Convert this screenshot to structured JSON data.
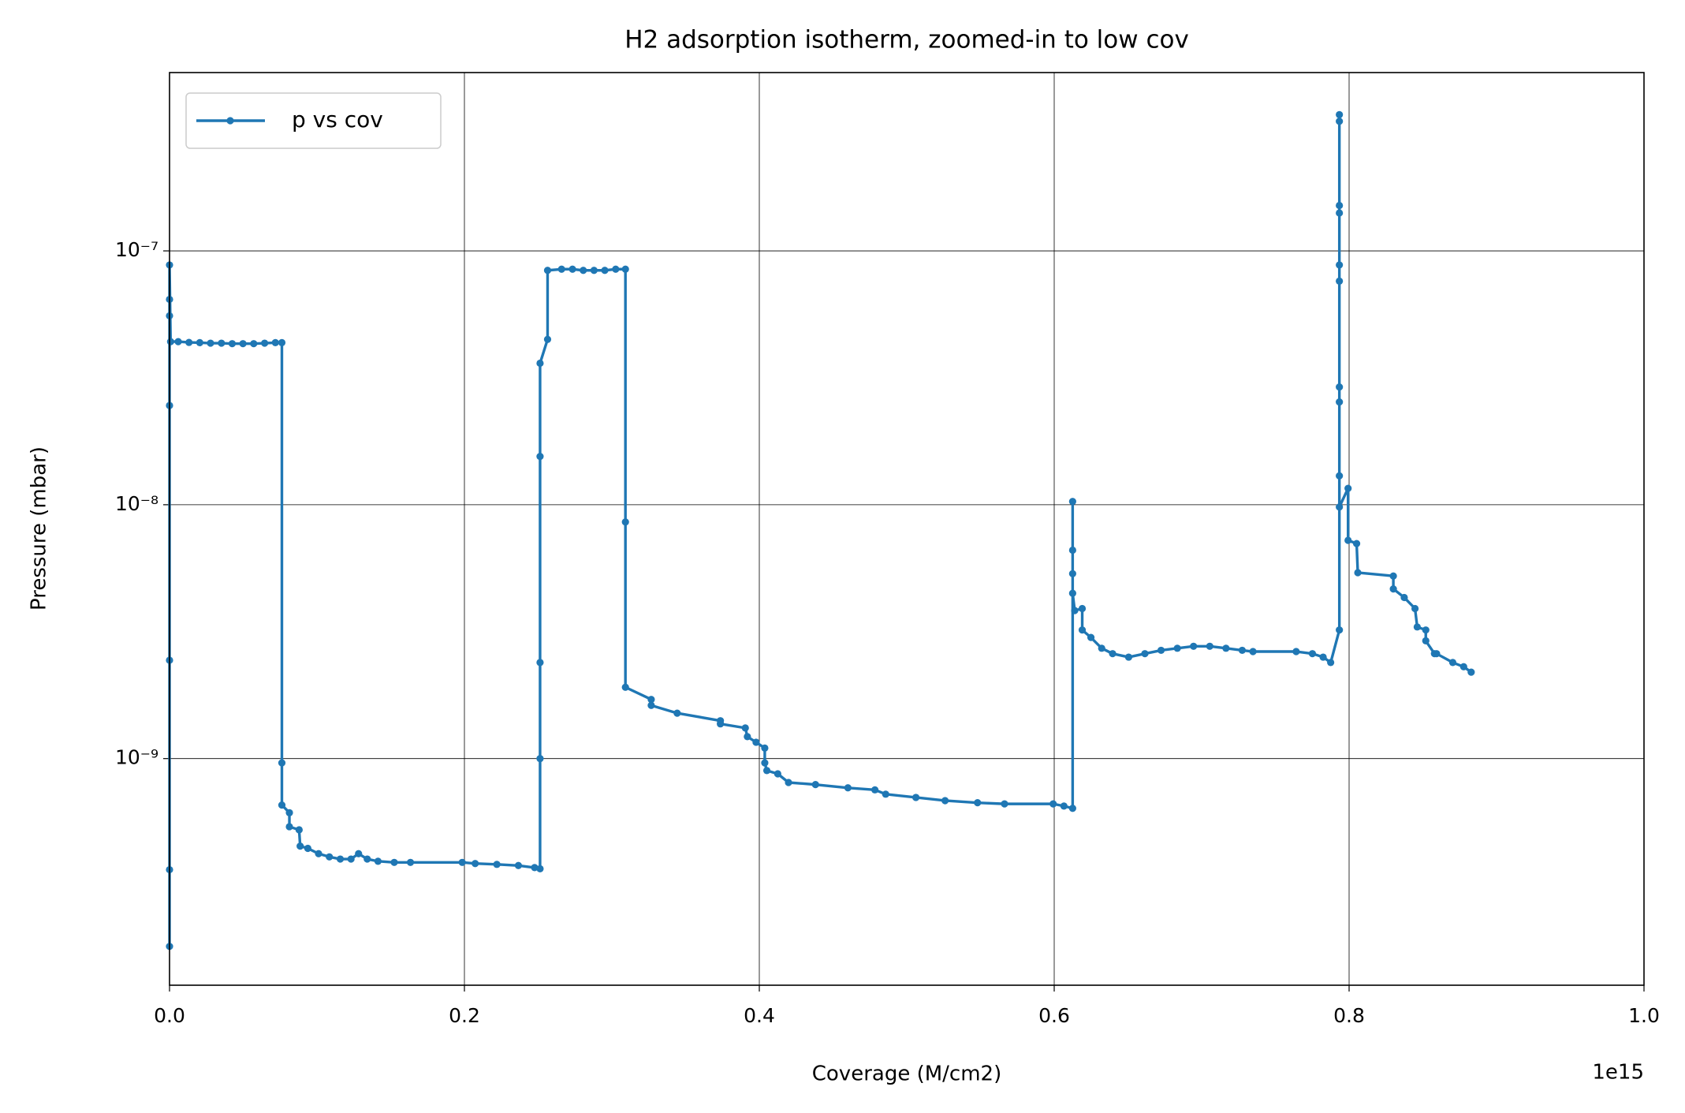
{
  "chart_data": {
    "type": "line",
    "title": "H2 adsorption isotherm, zoomed-in to low cov",
    "x_label": "Coverage (M/cm2)",
    "y_label": "Pressure (mbar)",
    "x_offset_label": "1e15",
    "y_scale": "log",
    "grid": true,
    "legend_position": "upper left",
    "xlim": [
      0,
      1000000000000000.0
    ],
    "xticks": [
      {
        "value": 0,
        "label": "0.0"
      },
      {
        "value": 200000000000000.0,
        "label": "0.2"
      },
      {
        "value": 400000000000000.0,
        "label": "0.4"
      },
      {
        "value": 600000000000000.0,
        "label": "0.6"
      },
      {
        "value": 800000000000000.0,
        "label": "0.8"
      },
      {
        "value": 1000000000000000.0,
        "label": "1.0"
      }
    ],
    "ylim": [
      1.28e-10,
      5.04e-07
    ],
    "yticks": [
      {
        "value": 1e-09,
        "label": "10⁻⁹"
      },
      {
        "value": 1e-08,
        "label": "10⁻⁸"
      },
      {
        "value": 1e-07,
        "label": "10⁻⁷"
      }
    ],
    "series": [
      {
        "name": "p vs cov",
        "color": "#1f77b4",
        "x": [
          0,
          0,
          0,
          0,
          0,
          0,
          0,
          730000000000.0,
          5900000000000.0,
          13200000000000.0,
          20500000000000.0,
          27800000000000.0,
          35200000000000.0,
          42500000000000.0,
          49800000000000.0,
          57100000000000.0,
          64500000000000.0,
          71800000000000.0,
          76200000000000.0,
          76200000000000.0,
          76200000000000.0,
          81300000000000.0,
          81300000000000.0,
          87900000000000.0,
          88600000000000.0,
          93800000000000.0,
          101100000000000.0,
          108400000000000.0,
          115800000000000.0,
          123100000000000.0,
          128200000000000.0,
          134100000000000.0,
          141400000000000.0,
          152400000000000.0,
          163400000000000.0,
          198500000000000.0,
          207300000000000.0,
          222000000000000.0,
          236600000000000.0,
          247600000000000.0,
          251300000000000.0,
          251300000000000.0,
          251300000000000.0,
          251300000000000.0,
          251300000000000.0,
          256400000000000.0,
          256400000000000.0,
          265900000000000.0,
          273300000000000.0,
          280600000000000.0,
          287900000000000.0,
          295200000000000.0,
          302600000000000.0,
          309200000000000.0,
          309200000000000.0,
          309200000000000.0,
          326700000000000.0,
          326700000000000.0,
          344300000000000.0,
          373600000000000.0,
          373600000000000.0,
          390500000000000.0,
          391900000000000.0,
          397800000000000.0,
          403700000000000.0,
          403700000000000.0,
          405100000000000.0,
          412500000000000.0,
          419800000000000.0,
          438100000000000.0,
          460100000000000.0,
          478400000000000.0,
          485700000000000.0,
          506200000000000.0,
          526000000000000.0,
          548000000000000.0,
          566300000000000.0,
          599300000000000.0,
          606600000000000.0,
          612500000000000.0,
          612500000000000.0,
          612500000000000.0,
          612500000000000.0,
          612500000000000.0,
          613900000000000.0,
          619000000000000.0,
          619000000000000.0,
          624900000000000.0,
          632200000000000.0,
          639600000000000.0,
          650500000000000.0,
          661500000000000.0,
          672500000000000.0,
          683500000000000.0,
          694500000000000.0,
          705500000000000.0,
          716500000000000.0,
          727500000000000.0,
          734800000000000.0,
          764100000000000.0,
          775100000000000.0,
          782400000000000.0,
          787500000000000.0,
          793400000000000.0,
          793400000000000.0,
          793400000000000.0,
          793400000000000.0,
          793400000000000.0,
          793400000000000.0,
          793400000000000.0,
          793400000000000.0,
          793400000000000.0,
          793400000000000.0,
          793400000000000.0,
          799300000000000.0,
          799300000000000.0,
          805100000000000.0,
          805900000000000.0,
          830000000000000.0,
          830000000000000.0,
          837400000000000.0,
          844700000000000.0,
          846200000000000.0,
          852000000000000.0,
          852000000000000.0,
          857900000000000.0,
          859300000000000.0,
          870300000000000.0,
          877700000000000.0,
          882800000000000.0
        ],
        "values": [
          1.82e-10,
          3.65e-10,
          2.44e-09,
          2.46e-08,
          5.55e-08,
          6.44e-08,
          8.8e-08,
          4.39e-08,
          4.39e-08,
          4.36e-08,
          4.35e-08,
          4.33e-08,
          4.33e-08,
          4.31e-08,
          4.31e-08,
          4.31e-08,
          4.33e-08,
          4.35e-08,
          4.35e-08,
          9.62e-10,
          6.56e-10,
          6.12e-10,
          5.39e-10,
          5.24e-10,
          4.52e-10,
          4.43e-10,
          4.22e-10,
          4.1e-10,
          4.02e-10,
          4.02e-10,
          4.22e-10,
          4.02e-10,
          3.94e-10,
          3.9e-10,
          3.9e-10,
          3.9e-10,
          3.86e-10,
          3.83e-10,
          3.79e-10,
          3.72e-10,
          3.68e-10,
          1e-09,
          2.39e-09,
          1.55e-08,
          3.61e-08,
          4.48e-08,
          8.38e-08,
          8.47e-08,
          8.47e-08,
          8.38e-08,
          8.38e-08,
          8.38e-08,
          8.47e-08,
          8.47e-08,
          8.55e-09,
          1.91e-09,
          1.71e-09,
          1.62e-09,
          1.51e-09,
          1.41e-09,
          1.37e-09,
          1.32e-09,
          1.22e-09,
          1.16e-09,
          1.1e-09,
          9.62e-10,
          8.97e-10,
          8.71e-10,
          8.05e-10,
          7.9e-10,
          7.67e-10,
          7.53e-10,
          7.24e-10,
          7.03e-10,
          6.83e-10,
          6.7e-10,
          6.63e-10,
          6.63e-10,
          6.5e-10,
          6.37e-10,
          1.03e-08,
          6.62e-09,
          5.35e-09,
          4.48e-09,
          3.83e-09,
          3.9e-09,
          3.21e-09,
          3e-09,
          2.72e-09,
          2.59e-09,
          2.51e-09,
          2.59e-09,
          2.67e-09,
          2.72e-09,
          2.77e-09,
          2.77e-09,
          2.72e-09,
          2.67e-09,
          2.64e-09,
          2.64e-09,
          2.59e-09,
          2.51e-09,
          2.39e-09,
          3.21e-09,
          1.3e-08,
          2.54e-08,
          2.91e-08,
          7.6e-08,
          8.8e-08,
          1.41e-07,
          1.51e-07,
          3.24e-07,
          3.44e-07,
          9.8e-09,
          1.16e-08,
          7.24e-09,
          7.03e-09,
          5.4e-09,
          5.24e-09,
          4.66e-09,
          4.31e-09,
          3.9e-09,
          3.3e-09,
          3.21e-09,
          2.91e-09,
          2.59e-09,
          2.59e-09,
          2.39e-09,
          2.3e-09,
          2.19e-09
        ]
      }
    ]
  }
}
